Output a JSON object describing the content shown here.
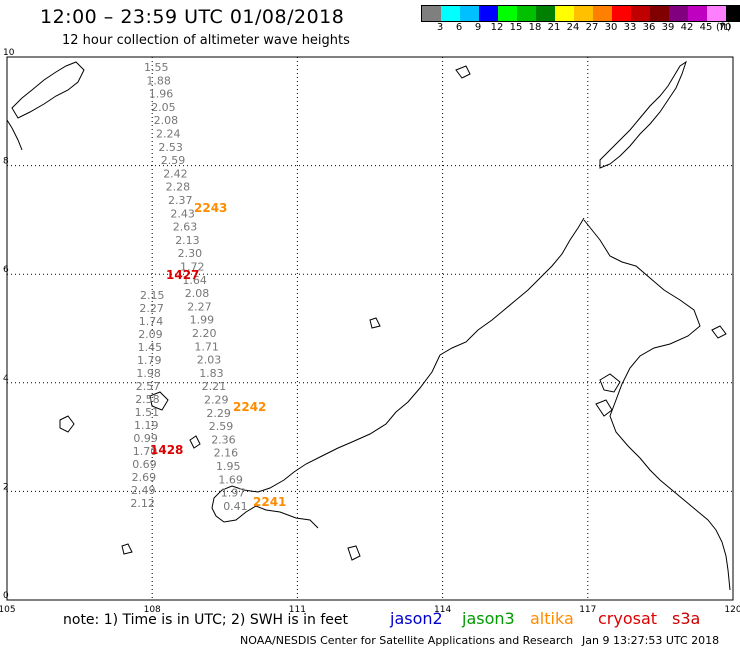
{
  "header": {
    "title": "12:00 – 23:59 UTC 01/08/2018",
    "subtitle": "12 hour collection of altimeter wave heights"
  },
  "colorbar": {
    "colors": [
      "#7f7f7f",
      "#00ffff",
      "#00c0ff",
      "#0000ff",
      "#00ff00",
      "#00c000",
      "#008000",
      "#ffff00",
      "#ffc000",
      "#ff8000",
      "#ff0000",
      "#c00000",
      "#800000",
      "#800080",
      "#c000c0",
      "#ff80ff",
      "#000000"
    ],
    "labels": [
      "3",
      "6",
      "9",
      "12",
      "15",
      "18",
      "21",
      "24",
      "27",
      "30",
      "33",
      "36",
      "39",
      "42",
      "45",
      "70"
    ],
    "unit": "(ft)"
  },
  "map": {
    "lon_range": [
      105,
      120
    ],
    "lat_range": [
      0,
      10
    ],
    "x_ticks": [
      "105",
      "108",
      "111",
      "114",
      "117",
      "120"
    ],
    "y_ticks": [
      "0",
      "2",
      "4",
      "6",
      "8",
      "10"
    ],
    "grid": "dotted"
  },
  "tracks": [
    {
      "name": "track-a",
      "heights": [
        "1.55",
        "1.88",
        "1.96",
        "2.05",
        "2.08",
        "2.24",
        "2.53",
        "2.59",
        "2.42",
        "2.28",
        "2.37",
        "2.43",
        "2.63",
        "2.13",
        "2.30",
        "1.72",
        "1.64",
        "2.08",
        "2.27",
        "1.99",
        "2.20",
        "1.71",
        "2.03",
        "1.83",
        "2.21",
        "2.29",
        "2.29",
        "2.59",
        "2.36",
        "2.16",
        "1.95",
        "1.69",
        "1.97",
        "0.41"
      ]
    },
    {
      "name": "track-b",
      "heights": [
        "2.15",
        "2.27",
        "1.74",
        "2.09",
        "1.45",
        "1.79",
        "1.98",
        "2.57",
        "2.58",
        "1.51",
        "1.19",
        "0.99",
        "1.70",
        "0.69",
        "2.69",
        "2.49",
        "2.12"
      ]
    }
  ],
  "pass_labels": [
    {
      "text": "2243",
      "color": "#ff8c00"
    },
    {
      "text": "1427",
      "color": "#dd0000"
    },
    {
      "text": "2242",
      "color": "#ff8c00"
    },
    {
      "text": "1428",
      "color": "#dd0000"
    },
    {
      "text": "2241",
      "color": "#ff8c00"
    }
  ],
  "footer": {
    "note": "note:  1) Time is in UTC;  2) SWH is in feet",
    "legend": [
      {
        "text": "jason2",
        "color": "#0000cc"
      },
      {
        "text": "jason3",
        "color": "#009900"
      },
      {
        "text": "altika",
        "color": "#ff8c00"
      },
      {
        "text": "cryosat",
        "color": "#dd0000"
      },
      {
        "text": "s3a",
        "color": "#cc0000"
      }
    ],
    "credit": "NOAA/NESDIS Center for Satellite Applications and Research",
    "timestamp": "Jan  9 13:27:53 UTC 2018"
  }
}
